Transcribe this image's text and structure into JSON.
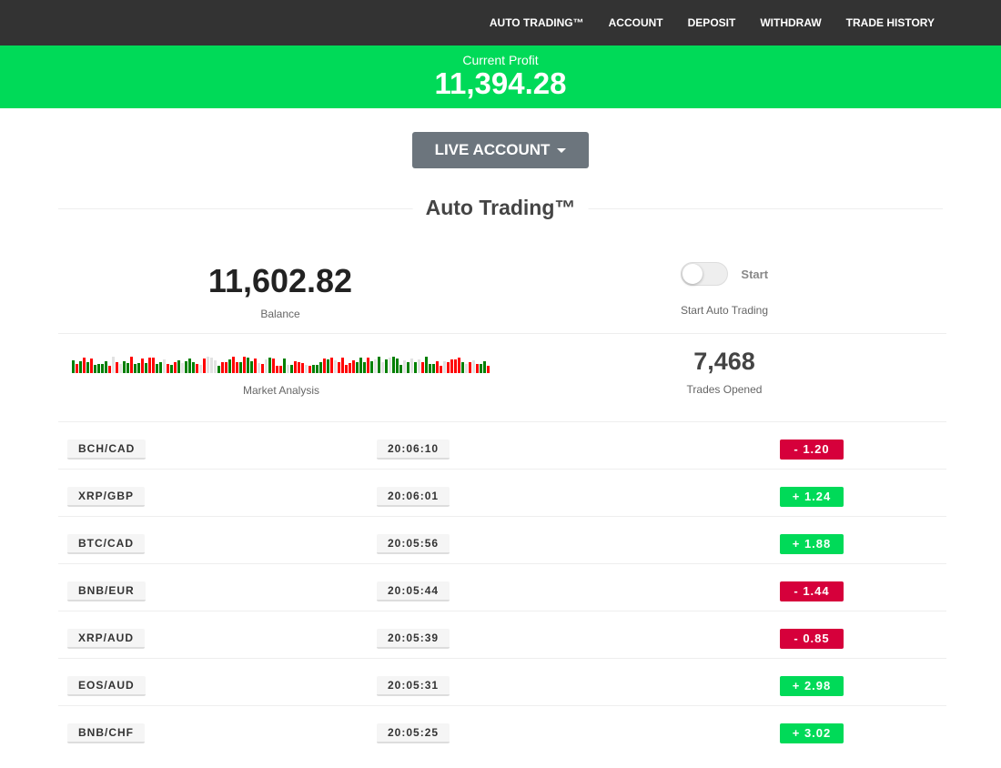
{
  "nav": {
    "items": [
      "AUTO TRADING™",
      "ACCOUNT",
      "DEPOSIT",
      "WITHDRAW",
      "TRADE HISTORY"
    ]
  },
  "profit": {
    "label": "Current Profit",
    "value": "11,394.28"
  },
  "account_button": "LIVE ACCOUNT",
  "section_title": "Auto Trading™",
  "balance": {
    "value": "11,602.82",
    "label": "Balance"
  },
  "auto_trading": {
    "toggle_label": "Start",
    "toggle_on": false,
    "caption": "Start Auto Trading"
  },
  "market": {
    "label": "Market Analysis",
    "colors": {
      "up": "#008000",
      "down": "#ff0000",
      "neutral": "#e2e2e2"
    }
  },
  "trades_opened": {
    "value": "7,468",
    "label": "Trades Opened"
  },
  "colors": {
    "green": "#00da58",
    "red": "#d6003b",
    "nav": "#333333"
  },
  "trades": [
    {
      "pair": "BCH/CAD",
      "time": "20:06:10",
      "amount": "- 1.20",
      "dir": "down"
    },
    {
      "pair": "XRP/GBP",
      "time": "20:06:01",
      "amount": "+ 1.24",
      "dir": "up"
    },
    {
      "pair": "BTC/CAD",
      "time": "20:05:56",
      "amount": "+ 1.88",
      "dir": "up"
    },
    {
      "pair": "BNB/EUR",
      "time": "20:05:44",
      "amount": "- 1.44",
      "dir": "down"
    },
    {
      "pair": "XRP/AUD",
      "time": "20:05:39",
      "amount": "- 0.85",
      "dir": "down"
    },
    {
      "pair": "EOS/AUD",
      "time": "20:05:31",
      "amount": "+ 2.98",
      "dir": "up"
    },
    {
      "pair": "BNB/CHF",
      "time": "20:05:25",
      "amount": "+ 3.02",
      "dir": "up"
    }
  ]
}
